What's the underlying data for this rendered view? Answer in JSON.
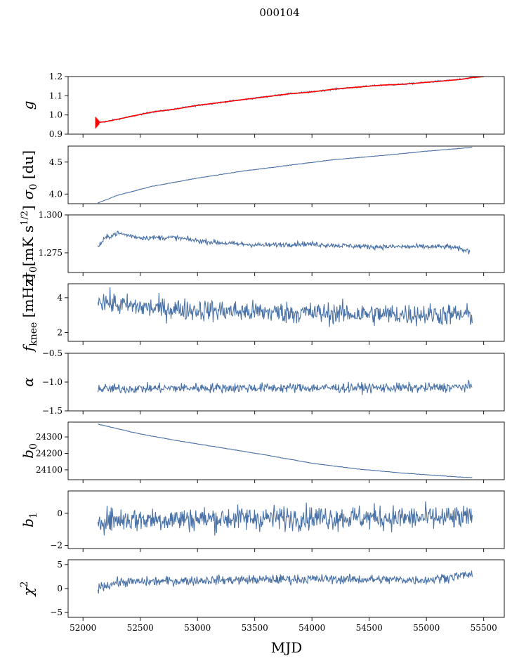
{
  "figure_title": "000104",
  "chart_data": {
    "type": "line",
    "xlabel": "MJD",
    "xlim": [
      51870,
      55680
    ],
    "xticks": [
      52000,
      52500,
      53000,
      53500,
      54000,
      54500,
      55000,
      55500
    ],
    "xtick_labels": [
      "52000",
      "52500",
      "53000",
      "53500",
      "54000",
      "54500",
      "55000",
      "55500"
    ],
    "series_color": "#4a72a6",
    "fit_color": "#ff0000",
    "panels": [
      {
        "key": "g",
        "ylabel": "g",
        "ylim": [
          0.9,
          1.2
        ],
        "yticks": [
          0.9,
          1.0,
          1.1,
          1.2
        ],
        "ytick_labels": [
          "0.9",
          "1.0",
          "1.1",
          "1.2"
        ],
        "x": [
          52110,
          52200,
          52400,
          52600,
          52800,
          53000,
          53200,
          53400,
          53600,
          53800,
          54000,
          54200,
          54400,
          54600,
          54800,
          55000,
          55200,
          55300,
          55400,
          55500
        ],
        "y": [
          0.96,
          0.965,
          0.99,
          1.015,
          1.03,
          1.05,
          1.065,
          1.08,
          1.095,
          1.11,
          1.12,
          1.135,
          1.145,
          1.155,
          1.16,
          1.17,
          1.18,
          1.185,
          1.195,
          1.2
        ],
        "noise": 0.003,
        "fit": true
      },
      {
        "key": "sigma0_du",
        "ylabel": "σ0 [du]",
        "ylim": [
          3.85,
          4.75
        ],
        "yticks": [
          4.0,
          4.5
        ],
        "ytick_labels": [
          "4.0",
          "4.5"
        ],
        "x": [
          52130,
          52300,
          52600,
          53000,
          53400,
          53800,
          54200,
          54600,
          55000,
          55400
        ],
        "y": [
          3.86,
          3.98,
          4.12,
          4.25,
          4.36,
          4.45,
          4.54,
          4.6,
          4.67,
          4.73
        ],
        "noise": 0.003
      },
      {
        "key": "sigma0_mk",
        "ylabel": "σ0[mK s^1/2]",
        "ylim": [
          1.262,
          1.3
        ],
        "yticks": [
          1.275,
          1.3
        ],
        "ytick_labels": [
          "1.275",
          "1.300"
        ],
        "x": [
          52130,
          52200,
          52300,
          52500,
          52800,
          53000,
          53300,
          53600,
          53900,
          54200,
          54500,
          54800,
          55000,
          55200,
          55380
        ],
        "y": [
          1.279,
          1.285,
          1.288,
          1.285,
          1.285,
          1.283,
          1.281,
          1.28,
          1.281,
          1.28,
          1.279,
          1.279,
          1.279,
          1.279,
          1.276
        ],
        "noise": 0.0012
      },
      {
        "key": "fknee",
        "ylabel": "fknee [mHz]",
        "ylim": [
          1.5,
          4.8
        ],
        "yticks": [
          2,
          4
        ],
        "ytick_labels": [
          "2",
          "4"
        ],
        "x": [
          52130,
          52300,
          52600,
          53000,
          53400,
          53800,
          54200,
          54600,
          55000,
          55400
        ],
        "y": [
          3.9,
          3.6,
          3.4,
          3.3,
          3.2,
          3.15,
          3.1,
          3.05,
          3.05,
          3.0
        ],
        "noise": 0.45
      },
      {
        "key": "alpha",
        "ylabel": "α",
        "ylim": [
          -1.5,
          -0.5
        ],
        "yticks": [
          -1.5,
          -1.0,
          -0.5
        ],
        "ytick_labels": [
          "−1.5",
          "−1.0",
          "−0.5"
        ],
        "x": [
          52130,
          53000,
          54000,
          55000,
          55400
        ],
        "y": [
          -1.12,
          -1.1,
          -1.1,
          -1.1,
          -1.08
        ],
        "noise": 0.06
      },
      {
        "key": "b0",
        "ylabel": "b0",
        "ylim": [
          24040,
          24390
        ],
        "yticks": [
          24100,
          24200,
          24300
        ],
        "ytick_labels": [
          "24100",
          "24200",
          "24300"
        ],
        "x": [
          52130,
          52300,
          52500,
          52800,
          53200,
          53600,
          54000,
          54400,
          54800,
          55200,
          55400
        ],
        "y": [
          24378,
          24350,
          24318,
          24280,
          24235,
          24190,
          24140,
          24105,
          24080,
          24060,
          24052
        ],
        "noise": 1.0
      },
      {
        "key": "b1",
        "ylabel": "b1",
        "ylim": [
          -2.2,
          1.4
        ],
        "yticks": [
          -2,
          0
        ],
        "ytick_labels": [
          "−2",
          "0"
        ],
        "x": [
          52130,
          53000,
          54000,
          55000,
          55400
        ],
        "y": [
          -0.4,
          -0.35,
          -0.25,
          -0.3,
          -0.3
        ],
        "noise": 0.55
      },
      {
        "key": "chi2",
        "ylabel": "χ^2",
        "ylim": [
          -6,
          6
        ],
        "yticks": [
          -5,
          0,
          5
        ],
        "ytick_labels": [
          "−5",
          "0",
          "5"
        ],
        "x": [
          52130,
          52300,
          53000,
          54000,
          55000,
          55400
        ],
        "y": [
          0.2,
          1.3,
          1.7,
          2.0,
          1.8,
          3.0
        ],
        "noise": 0.7
      }
    ]
  }
}
